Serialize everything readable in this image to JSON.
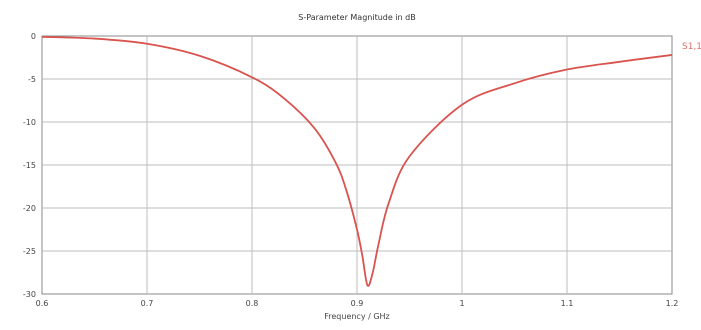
{
  "chart_data": {
    "type": "line",
    "title": "S-Parameter Magnitude in dB",
    "xlabel": "Frequency / GHz",
    "ylabel": "",
    "xlim": [
      0.6,
      1.2
    ],
    "ylim": [
      -30,
      0
    ],
    "x_ticks": [
      "0.6",
      "0.7",
      "0.8",
      "0.9",
      "1",
      "1.1",
      "1.2"
    ],
    "y_ticks": [
      "0",
      "-5",
      "-10",
      "-15",
      "-20",
      "-25",
      "-30"
    ],
    "grid": true,
    "legend_position": "right",
    "series": [
      {
        "name": "S1,1",
        "color": "#d9534f",
        "x": [
          0.6,
          0.65,
          0.7,
          0.75,
          0.8,
          0.83,
          0.86,
          0.88,
          0.89,
          0.9,
          0.905,
          0.91,
          0.915,
          0.92,
          0.93,
          0.95,
          1.0,
          1.05,
          1.1,
          1.15,
          1.2
        ],
        "y": [
          -0.1,
          -0.3,
          -0.9,
          -2.3,
          -4.8,
          -7.2,
          -10.8,
          -14.8,
          -18.0,
          -22.5,
          -25.5,
          -29.0,
          -27.5,
          -24.5,
          -19.5,
          -14.0,
          -8.0,
          -5.5,
          -3.9,
          -3.0,
          -2.2
        ]
      }
    ]
  }
}
